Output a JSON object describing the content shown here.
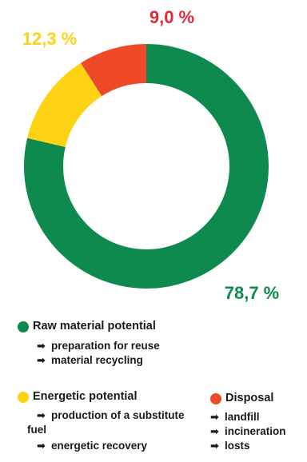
{
  "chart_data": {
    "type": "pie",
    "style": "donut",
    "labels": [
      "Raw material potential",
      "Energetic potential",
      "Disposal"
    ],
    "values": [
      78.7,
      12.3,
      9.0
    ],
    "value_labels": [
      "78,7 %",
      "12,3 %",
      "9,0 %"
    ],
    "colors": [
      "#0e8a4f",
      "#fdd314",
      "#ee4a28"
    ],
    "label_colors": [
      "#0e8a4f",
      "#fdd314",
      "#dd2b3a"
    ],
    "legend_position": "bottom"
  },
  "legend": [
    {
      "label": "Raw material potential",
      "color": "#0e8a4f",
      "items": [
        "preparation for reuse",
        "material recycling"
      ]
    },
    {
      "label": "Energetic potential",
      "color": "#fdd314",
      "items": [
        "production of a substitute fuel",
        "energetic recovery"
      ]
    },
    {
      "label": "Disposal",
      "color": "#ee4a28",
      "items": [
        "landfill",
        "incineration",
        "losts"
      ]
    }
  ],
  "arrow_glyph": "➡"
}
